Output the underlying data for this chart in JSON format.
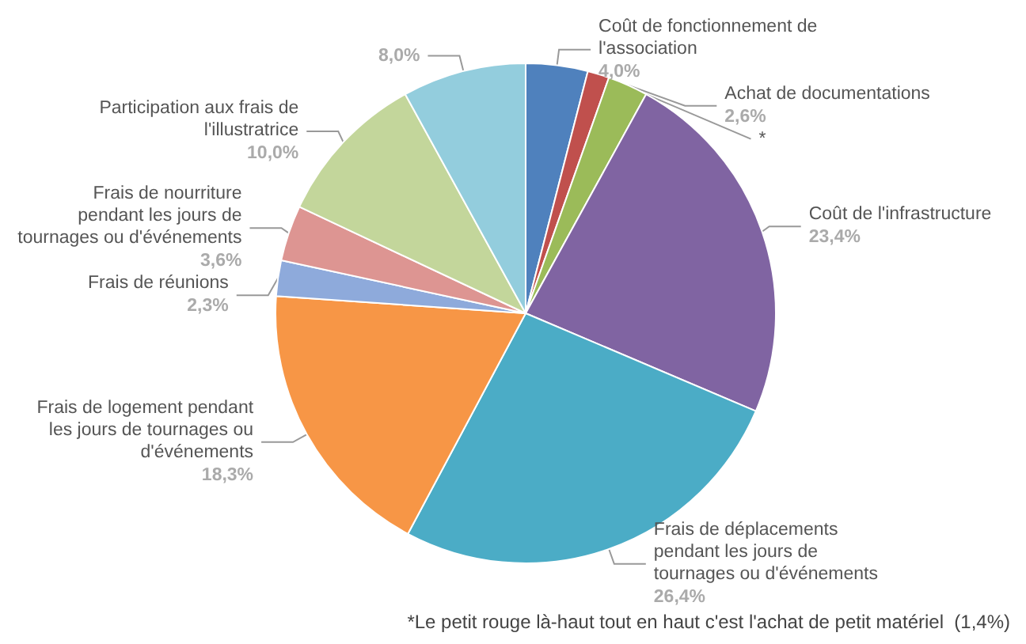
{
  "chart_data": {
    "type": "pie",
    "categories": [
      "Coût de fonctionnement de l'association",
      "*",
      "Achat de documentations",
      "Coût de l'infrastructure",
      "Frais de déplacements pendant les jours de tournages ou d'événements",
      "Frais de logement pendant les jours de tournages ou d'événements",
      "Frais de réunions",
      "Frais de nourriture pendant les jours de tournages ou d'événements",
      "Participation aux frais de l'illustratrice",
      null
    ],
    "values": [
      4.0,
      1.4,
      2.6,
      23.4,
      26.4,
      18.3,
      2.3,
      3.6,
      10.0,
      8.0
    ],
    "value_labels": [
      "4,0%",
      null,
      "2,6%",
      "23,4%",
      "26,4%",
      "18,3%",
      "2,3%",
      "3,6%",
      "10,0%",
      "8,0%"
    ],
    "colors": [
      "#4f81bd",
      "#c0504d",
      "#9bbb59",
      "#8064a2",
      "#4bacc6",
      "#f79646",
      "#8eaadb",
      "#dd9592",
      "#c3d69b",
      "#93cddd"
    ],
    "legend": false,
    "annotations": [
      "*Le petit rouge là-haut tout en haut c'est l'achat de petit matériel  (1,4%)"
    ]
  }
}
